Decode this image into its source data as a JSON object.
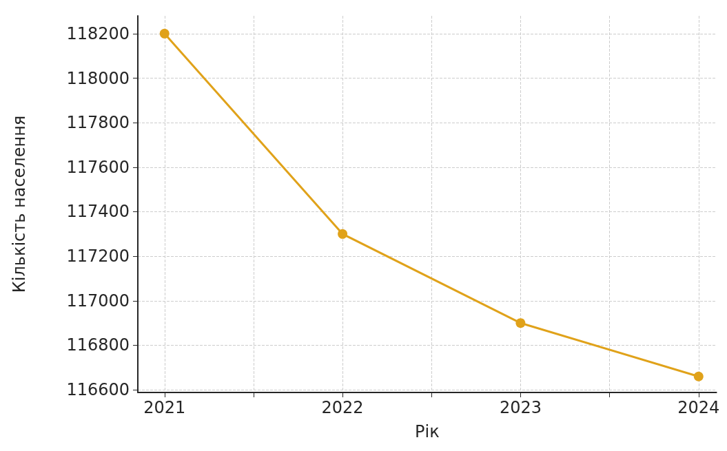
{
  "chart_data": {
    "type": "line",
    "xlabel": "Рік",
    "ylabel": "Кількість населення",
    "x": [
      2021,
      2022,
      2023,
      2024
    ],
    "series": [
      {
        "color": "#e0a21a",
        "values": [
          118200,
          117300,
          116900,
          116660
        ]
      }
    ],
    "xlim": [
      2020.85,
      2024.1
    ],
    "xticks": [
      2021,
      {
        "value": 2021.5,
        "label": null
      },
      2022,
      {
        "value": 2022.5,
        "label": null
      },
      2023,
      {
        "value": 2023.5,
        "label": null
      },
      2024
    ],
    "ylim": [
      116588,
      118280
    ],
    "yticks": [
      116600,
      116800,
      117000,
      117200,
      117400,
      117600,
      117800,
      118000,
      118200
    ],
    "grid": true,
    "marker": "circle",
    "line_style": "solid"
  }
}
